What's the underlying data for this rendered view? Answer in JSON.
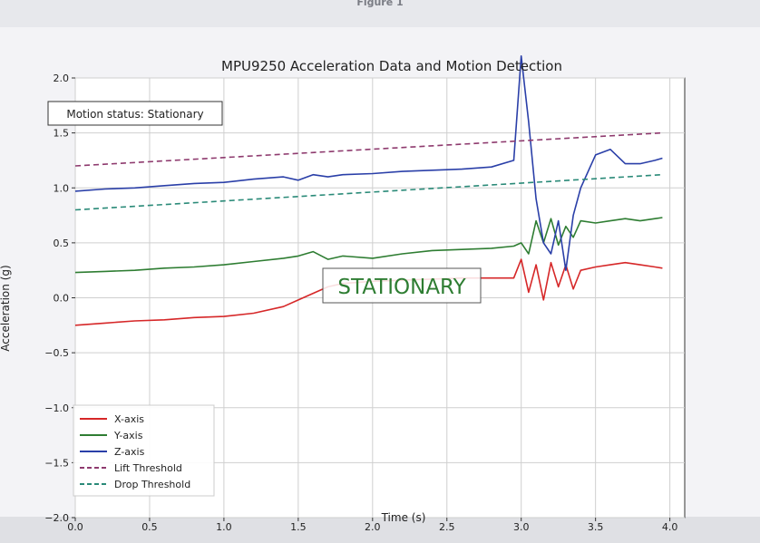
{
  "window": {
    "title": "Figure 1"
  },
  "status_box": {
    "text": "Motion status: Stationary"
  },
  "overlay_label": {
    "text": "STATIONARY"
  },
  "colors": {
    "x_axis": "#d62728",
    "y_axis": "#2e7d32",
    "z_axis": "#2a3fa8",
    "lift_threshold": "#8e3a6e",
    "drop_threshold": "#2a8a78",
    "overlay_text": "#2e7d32"
  },
  "chart_data": {
    "type": "line",
    "title": "MPU9250 Acceleration Data and Motion Detection",
    "xlabel": "Time (s)",
    "ylabel": "Acceleration (g)",
    "xlim": [
      0,
      4.1
    ],
    "ylim": [
      -2.0,
      2.0
    ],
    "xticks": [
      0.0,
      0.5,
      1.0,
      1.5,
      2.0,
      2.5,
      3.0,
      3.5,
      4.0
    ],
    "xtick_labels": [
      "0.0",
      "0.5",
      "1.0",
      "1.5",
      "2.0",
      "2.5",
      "3.0",
      "3.5",
      "4.0"
    ],
    "yticks": [
      -2.0,
      -1.5,
      -1.0,
      -0.5,
      0.0,
      0.5,
      1.0,
      1.5,
      2.0
    ],
    "ytick_labels": [
      "−2.0",
      "−1.5",
      "−1.0",
      "−0.5",
      "0.0",
      "0.5",
      "1.0",
      "1.5",
      "2.0"
    ],
    "grid": true,
    "legend_position": "lower-left",
    "series": [
      {
        "name": "X-axis",
        "style": "solid",
        "x": [
          0.0,
          0.2,
          0.4,
          0.6,
          0.8,
          1.0,
          1.2,
          1.4,
          1.5,
          1.6,
          1.7,
          1.8,
          2.0,
          2.2,
          2.4,
          2.6,
          2.8,
          2.95,
          3.0,
          3.05,
          3.1,
          3.15,
          3.2,
          3.25,
          3.3,
          3.35,
          3.4,
          3.5,
          3.6,
          3.7,
          3.8,
          3.9,
          3.95
        ],
        "y": [
          -0.25,
          -0.23,
          -0.21,
          -0.2,
          -0.18,
          -0.17,
          -0.14,
          -0.08,
          -0.02,
          0.04,
          0.1,
          0.13,
          0.15,
          0.16,
          0.17,
          0.18,
          0.18,
          0.18,
          0.35,
          0.05,
          0.3,
          -0.02,
          0.32,
          0.1,
          0.3,
          0.08,
          0.25,
          0.28,
          0.3,
          0.32,
          0.3,
          0.28,
          0.27
        ]
      },
      {
        "name": "Y-axis",
        "style": "solid",
        "x": [
          0.0,
          0.2,
          0.4,
          0.6,
          0.8,
          1.0,
          1.2,
          1.4,
          1.5,
          1.6,
          1.7,
          1.8,
          2.0,
          2.2,
          2.4,
          2.6,
          2.8,
          2.95,
          3.0,
          3.05,
          3.1,
          3.15,
          3.2,
          3.25,
          3.3,
          3.35,
          3.4,
          3.5,
          3.6,
          3.7,
          3.8,
          3.9,
          3.95
        ],
        "y": [
          0.23,
          0.24,
          0.25,
          0.27,
          0.28,
          0.3,
          0.33,
          0.36,
          0.38,
          0.42,
          0.35,
          0.38,
          0.36,
          0.4,
          0.43,
          0.44,
          0.45,
          0.47,
          0.5,
          0.4,
          0.7,
          0.5,
          0.72,
          0.48,
          0.65,
          0.55,
          0.7,
          0.68,
          0.7,
          0.72,
          0.7,
          0.72,
          0.73
        ]
      },
      {
        "name": "Z-axis",
        "style": "solid",
        "x": [
          0.0,
          0.2,
          0.4,
          0.6,
          0.8,
          1.0,
          1.2,
          1.4,
          1.5,
          1.6,
          1.7,
          1.8,
          2.0,
          2.2,
          2.4,
          2.6,
          2.8,
          2.95,
          3.0,
          3.05,
          3.1,
          3.15,
          3.2,
          3.25,
          3.3,
          3.35,
          3.4,
          3.5,
          3.6,
          3.7,
          3.8,
          3.9,
          3.95
        ],
        "y": [
          0.97,
          0.99,
          1.0,
          1.02,
          1.04,
          1.05,
          1.08,
          1.1,
          1.07,
          1.12,
          1.1,
          1.12,
          1.13,
          1.15,
          1.16,
          1.17,
          1.19,
          1.25,
          2.2,
          1.6,
          0.9,
          0.5,
          0.4,
          0.7,
          0.25,
          0.75,
          1.0,
          1.3,
          1.35,
          1.22,
          1.22,
          1.25,
          1.27
        ]
      },
      {
        "name": "Lift Threshold",
        "style": "dashed",
        "x": [
          0.0,
          3.95
        ],
        "y": [
          1.2,
          1.5
        ]
      },
      {
        "name": "Drop Threshold",
        "style": "dashed",
        "x": [
          0.0,
          3.95
        ],
        "y": [
          0.8,
          1.12
        ]
      }
    ]
  }
}
